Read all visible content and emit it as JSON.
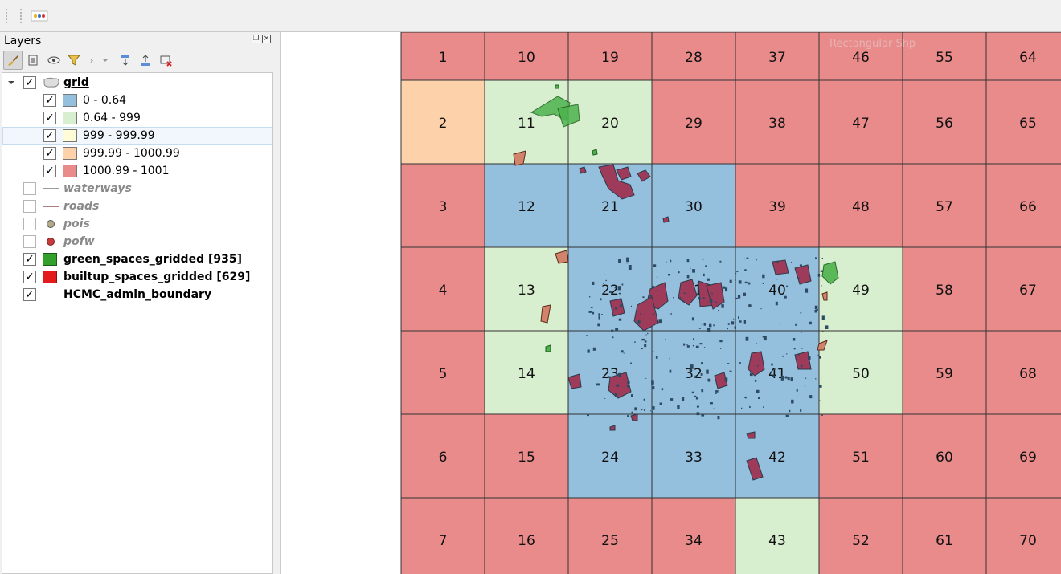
{
  "panel": {
    "title": "Layers"
  },
  "layers": [
    {
      "name": "grid",
      "checked": true,
      "expanded": true
    },
    {
      "name": "waterways",
      "checked": false,
      "style": "line",
      "color": "#9a9a9a"
    },
    {
      "name": "roads",
      "checked": false,
      "style": "line",
      "color": "#b27b7b"
    },
    {
      "name": "pois",
      "checked": false,
      "style": "point",
      "color": "#b3a98a"
    },
    {
      "name": "pofw",
      "checked": false,
      "style": "point",
      "color": "#c83b3b"
    },
    {
      "name": "green_spaces_gridded [935]",
      "checked": true,
      "color": "#33a02c"
    },
    {
      "name": "builtup_spaces_gridded [629]",
      "checked": true,
      "color": "#e31a1c"
    },
    {
      "name": "HCMC_admin_boundary",
      "checked": true
    }
  ],
  "grid_classes": [
    {
      "label": "0 - 0.64",
      "color": "#94bfdd",
      "checked": true
    },
    {
      "label": "0.64 - 999",
      "color": "#d7eecf",
      "checked": true
    },
    {
      "label": "999 - 999.99",
      "color": "#fefdd8",
      "checked": true,
      "selected": true
    },
    {
      "label": "999.99 - 1000.99",
      "color": "#fdd2ab",
      "checked": true
    },
    {
      "label": "1000.99 - 1001",
      "color": "#e98b8b",
      "checked": true
    }
  ],
  "map": {
    "watermark": "Rectangular Shp",
    "class_colors": {
      "0": "#94bfdd",
      "1": "#d7eecf",
      "3": "#fdd2ab",
      "4": "#e98b8b"
    },
    "cells": [
      {
        "id": "1",
        "col": 0,
        "row": 0,
        "cls": 4
      },
      {
        "id": "2",
        "col": 0,
        "row": 1,
        "cls": 3
      },
      {
        "id": "3",
        "col": 0,
        "row": 2,
        "cls": 4
      },
      {
        "id": "4",
        "col": 0,
        "row": 3,
        "cls": 4
      },
      {
        "id": "5",
        "col": 0,
        "row": 4,
        "cls": 4
      },
      {
        "id": "6",
        "col": 0,
        "row": 5,
        "cls": 4
      },
      {
        "id": "7",
        "col": 0,
        "row": 6,
        "cls": 4
      },
      {
        "id": "10",
        "col": 1,
        "row": 0,
        "cls": 4
      },
      {
        "id": "11",
        "col": 1,
        "row": 1,
        "cls": 1
      },
      {
        "id": "12",
        "col": 1,
        "row": 2,
        "cls": 0
      },
      {
        "id": "13",
        "col": 1,
        "row": 3,
        "cls": 1
      },
      {
        "id": "14",
        "col": 1,
        "row": 4,
        "cls": 1
      },
      {
        "id": "15",
        "col": 1,
        "row": 5,
        "cls": 4
      },
      {
        "id": "16",
        "col": 1,
        "row": 6,
        "cls": 4
      },
      {
        "id": "19",
        "col": 2,
        "row": 0,
        "cls": 4
      },
      {
        "id": "20",
        "col": 2,
        "row": 1,
        "cls": 1
      },
      {
        "id": "21",
        "col": 2,
        "row": 2,
        "cls": 0
      },
      {
        "id": "22",
        "col": 2,
        "row": 3,
        "cls": 0
      },
      {
        "id": "23",
        "col": 2,
        "row": 4,
        "cls": 0
      },
      {
        "id": "24",
        "col": 2,
        "row": 5,
        "cls": 0
      },
      {
        "id": "25",
        "col": 2,
        "row": 6,
        "cls": 4
      },
      {
        "id": "28",
        "col": 3,
        "row": 0,
        "cls": 4
      },
      {
        "id": "29",
        "col": 3,
        "row": 1,
        "cls": 4
      },
      {
        "id": "30",
        "col": 3,
        "row": 2,
        "cls": 0
      },
      {
        "id": "31",
        "col": 3,
        "row": 3,
        "cls": 0
      },
      {
        "id": "32",
        "col": 3,
        "row": 4,
        "cls": 0
      },
      {
        "id": "33",
        "col": 3,
        "row": 5,
        "cls": 0
      },
      {
        "id": "34",
        "col": 3,
        "row": 6,
        "cls": 4
      },
      {
        "id": "37",
        "col": 4,
        "row": 0,
        "cls": 4
      },
      {
        "id": "38",
        "col": 4,
        "row": 1,
        "cls": 4
      },
      {
        "id": "39",
        "col": 4,
        "row": 2,
        "cls": 4
      },
      {
        "id": "40",
        "col": 4,
        "row": 3,
        "cls": 0
      },
      {
        "id": "41",
        "col": 4,
        "row": 4,
        "cls": 0
      },
      {
        "id": "42",
        "col": 4,
        "row": 5,
        "cls": 0
      },
      {
        "id": "43",
        "col": 4,
        "row": 6,
        "cls": 1
      },
      {
        "id": "46",
        "col": 5,
        "row": 0,
        "cls": 4
      },
      {
        "id": "47",
        "col": 5,
        "row": 1,
        "cls": 4
      },
      {
        "id": "48",
        "col": 5,
        "row": 2,
        "cls": 4
      },
      {
        "id": "49",
        "col": 5,
        "row": 3,
        "cls": 1
      },
      {
        "id": "50",
        "col": 5,
        "row": 4,
        "cls": 1
      },
      {
        "id": "51",
        "col": 5,
        "row": 5,
        "cls": 4
      },
      {
        "id": "52",
        "col": 5,
        "row": 6,
        "cls": 4
      },
      {
        "id": "55",
        "col": 6,
        "row": 0,
        "cls": 4
      },
      {
        "id": "56",
        "col": 6,
        "row": 1,
        "cls": 4
      },
      {
        "id": "57",
        "col": 6,
        "row": 2,
        "cls": 4
      },
      {
        "id": "58",
        "col": 6,
        "row": 3,
        "cls": 4
      },
      {
        "id": "59",
        "col": 6,
        "row": 4,
        "cls": 4
      },
      {
        "id": "60",
        "col": 6,
        "row": 5,
        "cls": 4
      },
      {
        "id": "61",
        "col": 6,
        "row": 6,
        "cls": 4
      },
      {
        "id": "64",
        "col": 7,
        "row": 0,
        "cls": 4
      },
      {
        "id": "65",
        "col": 7,
        "row": 1,
        "cls": 4
      },
      {
        "id": "66",
        "col": 7,
        "row": 2,
        "cls": 4
      },
      {
        "id": "67",
        "col": 7,
        "row": 3,
        "cls": 4
      },
      {
        "id": "68",
        "col": 7,
        "row": 4,
        "cls": 4
      },
      {
        "id": "69",
        "col": 7,
        "row": 5,
        "cls": 4
      },
      {
        "id": "70",
        "col": 7,
        "row": 6,
        "cls": 4
      }
    ]
  }
}
